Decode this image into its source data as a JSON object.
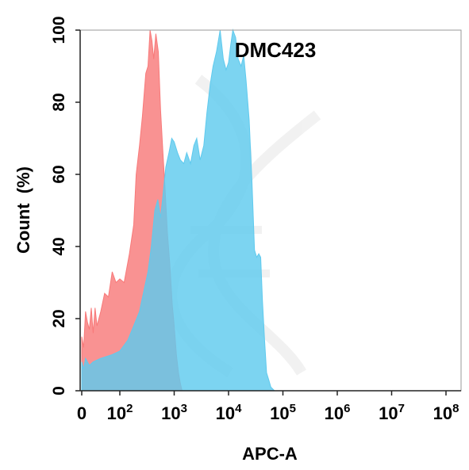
{
  "chart_data": {
    "type": "area",
    "title": "DMC423",
    "xlabel": "APC-A",
    "ylabel": "Count  (%)",
    "x_scale": "biexponential",
    "xlim": [
      0,
      100000000
    ],
    "ylim": [
      0,
      100
    ],
    "x_tick_labels": [
      {
        "value": 0,
        "base": "0",
        "exp": ""
      },
      {
        "value": 100,
        "base": "10",
        "exp": "2"
      },
      {
        "value": 1000,
        "base": "10",
        "exp": "3"
      },
      {
        "value": 10000,
        "base": "10",
        "exp": "4"
      },
      {
        "value": 100000,
        "base": "10",
        "exp": "5"
      },
      {
        "value": 1000000,
        "base": "10",
        "exp": "6"
      },
      {
        "value": 10000000,
        "base": "10",
        "exp": "7"
      },
      {
        "value": 100000000,
        "base": "10",
        "exp": "8"
      }
    ],
    "y_ticks": [
      0,
      20,
      40,
      60,
      80,
      100
    ],
    "grid": false,
    "legend": "none",
    "series": [
      {
        "color": "#f87a7a",
        "points": [
          [
            0,
            15
          ],
          [
            5,
            12
          ],
          [
            10,
            22
          ],
          [
            15,
            19
          ],
          [
            20,
            17
          ],
          [
            25,
            23
          ],
          [
            30,
            16
          ],
          [
            35,
            23
          ],
          [
            40,
            18
          ],
          [
            50,
            22
          ],
          [
            60,
            27
          ],
          [
            70,
            26
          ],
          [
            80,
            33
          ],
          [
            90,
            30
          ],
          [
            100,
            31
          ],
          [
            120,
            30
          ],
          [
            150,
            38
          ],
          [
            180,
            46
          ],
          [
            200,
            60
          ],
          [
            230,
            68
          ],
          [
            260,
            76
          ],
          [
            300,
            88
          ],
          [
            330,
            90
          ],
          [
            360,
            100
          ],
          [
            390,
            97
          ],
          [
            420,
            92
          ],
          [
            460,
            99
          ],
          [
            510,
            94
          ],
          [
            560,
            78
          ],
          [
            620,
            66
          ],
          [
            680,
            56
          ],
          [
            750,
            44
          ],
          [
            830,
            35
          ],
          [
            920,
            24
          ],
          [
            1000,
            18
          ],
          [
            1100,
            10
          ],
          [
            1200,
            5
          ],
          [
            1300,
            2
          ],
          [
            1400,
            0
          ]
        ]
      },
      {
        "color": "#5fcaee",
        "points": [
          [
            0,
            8
          ],
          [
            5,
            6
          ],
          [
            10,
            9
          ],
          [
            20,
            7
          ],
          [
            30,
            8
          ],
          [
            50,
            9
          ],
          [
            80,
            10
          ],
          [
            100,
            11
          ],
          [
            140,
            14
          ],
          [
            180,
            18
          ],
          [
            230,
            22
          ],
          [
            280,
            28
          ],
          [
            330,
            33
          ],
          [
            380,
            40
          ],
          [
            440,
            50
          ],
          [
            500,
            53
          ],
          [
            560,
            48
          ],
          [
            620,
            54
          ],
          [
            700,
            62
          ],
          [
            800,
            66
          ],
          [
            900,
            70
          ],
          [
            1000,
            69
          ],
          [
            1150,
            66
          ],
          [
            1300,
            64
          ],
          [
            1500,
            63
          ],
          [
            1700,
            66
          ],
          [
            2000,
            63
          ],
          [
            2300,
            68
          ],
          [
            2600,
            70
          ],
          [
            3000,
            64
          ],
          [
            3500,
            68
          ],
          [
            4000,
            77
          ],
          [
            4600,
            85
          ],
          [
            5200,
            90
          ],
          [
            6000,
            94
          ],
          [
            7000,
            100
          ],
          [
            8000,
            92
          ],
          [
            9000,
            89
          ],
          [
            10000,
            91
          ],
          [
            11000,
            96
          ],
          [
            12000,
            100
          ],
          [
            13500,
            98
          ],
          [
            15000,
            92
          ],
          [
            17000,
            90
          ],
          [
            19000,
            93
          ],
          [
            21000,
            86
          ],
          [
            24000,
            75
          ],
          [
            27000,
            58
          ],
          [
            30000,
            39
          ],
          [
            33000,
            37
          ],
          [
            36000,
            38
          ],
          [
            39000,
            37
          ],
          [
            42000,
            25
          ],
          [
            46000,
            14
          ],
          [
            50000,
            5
          ],
          [
            55000,
            3
          ],
          [
            60000,
            1
          ],
          [
            70000,
            0
          ]
        ]
      }
    ]
  }
}
